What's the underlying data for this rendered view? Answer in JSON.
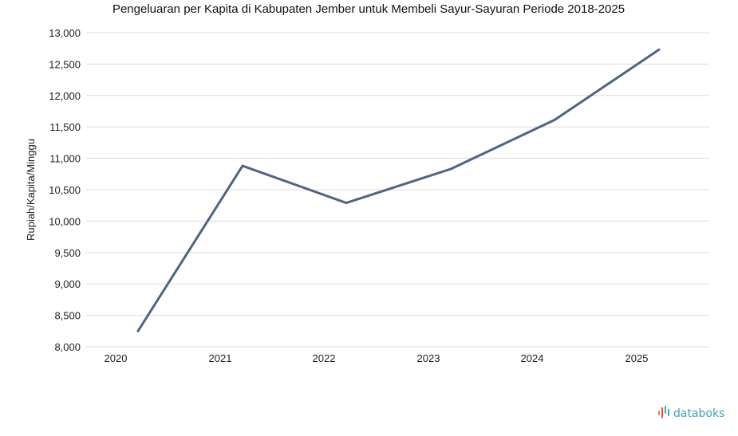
{
  "chart_data": {
    "type": "line",
    "title": "Pengeluaran per Kapita di Kabupaten Jember untuk Membeli Sayur-Sayuran Periode 2018-2025",
    "xlabel": "",
    "ylabel": "Rupiah/Kapita/Minggu",
    "x": [
      "2020",
      "2021",
      "2022",
      "2023",
      "2024",
      "2025"
    ],
    "series": [
      {
        "values": [
          8250,
          10880,
          10290,
          10830,
          11610,
          12730
        ]
      }
    ],
    "ylim": [
      8000,
      13000
    ],
    "yticks": [
      8000,
      8500,
      9000,
      9500,
      10000,
      10500,
      11000,
      11500,
      12000,
      12500,
      13000
    ],
    "ytick_labels": [
      "8,000",
      "8,500",
      "9,000",
      "9,500",
      "10,000",
      "10,500",
      "11,000",
      "11,500",
      "12,000",
      "12,500",
      "13,000"
    ],
    "grid": true,
    "line_color": "#4f6584"
  },
  "brand": {
    "name": "databoks",
    "color": "#3aa9b0",
    "icon": "databoks-logo-icon",
    "icon_colors": [
      "#f07a3a",
      "#e94e4e",
      "#3aa9b0"
    ]
  }
}
